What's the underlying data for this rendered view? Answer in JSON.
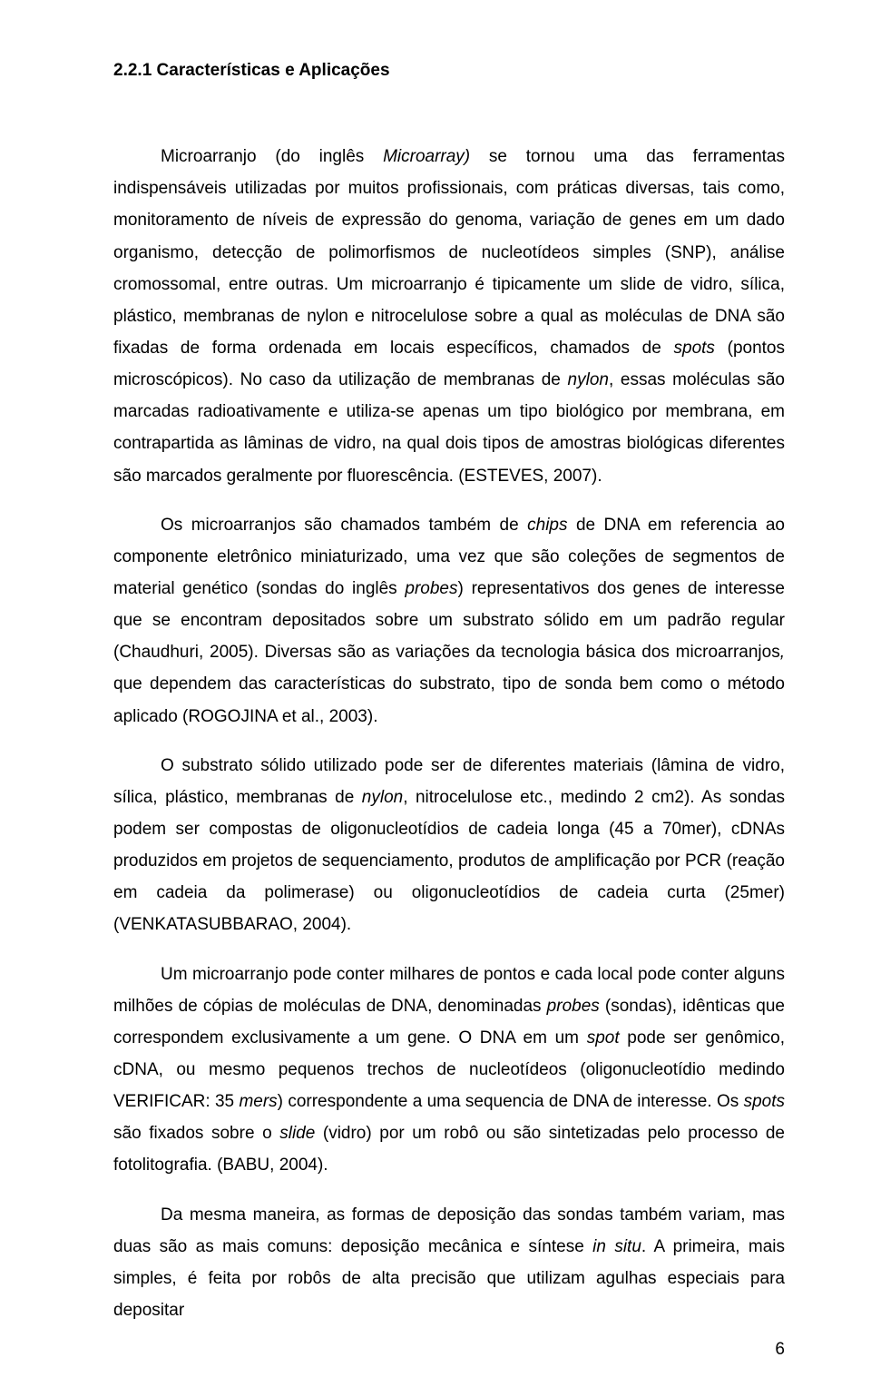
{
  "colors": {
    "background": "#ffffff",
    "text": "#000000"
  },
  "typography": {
    "font_family": "Arial, Helvetica, sans-serif",
    "font_size_pt": 12,
    "line_height": 1.85
  },
  "heading": "2.2.1   Características e Aplicações",
  "page_number": "6",
  "p1": {
    "t0": "Microarranjo (do inglês ",
    "t1": "Microarray)",
    "t2": " se tornou uma das ferramentas indispensáveis utilizadas por muitos profissionais, com práticas diversas, tais como, monitoramento de níveis de expressão do genoma, variação de genes em um dado organismo, detecção de polimorfismos de nucleotídeos simples (SNP), análise cromossomal, entre outras. Um microarranjo é tipicamente um slide de vidro, sílica, plástico, membranas de nylon e nitrocelulose sobre a qual as moléculas de DNA são fixadas de forma ordenada em locais específicos, chamados de ",
    "t3": "spots",
    "t4": " (pontos microscópicos). No caso da utilização de membranas de ",
    "t5": "nylon",
    "t6": ", essas moléculas são marcadas radioativamente e utiliza-se apenas um tipo biológico por membrana, em contrapartida as lâminas de vidro, na qual dois tipos de amostras biológicas diferentes são marcados geralmente por fluorescência. (ESTEVES, 2007)."
  },
  "p2": {
    "t0": "Os microarranjos são chamados também de ",
    "t1": "chips",
    "t2": " de DNA em referencia ao componente eletrônico miniaturizado, uma vez que são coleções de segmentos de material genético (sondas do inglês ",
    "t3": "probes",
    "t4": ") representativos dos genes de interesse que se encontram depositados sobre um substrato sólido em um padrão regular (Chaudhuri, 2005). Diversas são as variações da tecnologia básica dos microarranjos",
    "t5": ",",
    "t6": " que dependem das características do substrato, tipo de sonda bem como o método aplicado (ROGOJINA et al., 2003)."
  },
  "p3": {
    "t0": "O substrato sólido utilizado pode ser de diferentes materiais (lâmina de vidro, sílica, plástico, membranas de ",
    "t1": "nylon",
    "t2": ", nitrocelulose etc., medindo 2 cm2). As sondas podem ser compostas de oligonucleotídios de cadeia longa (45 a 70mer), cDNAs produzidos  em projetos de sequenciamento, produtos de amplificação por PCR (reação em cadeia da polimerase) ou oligonucleotídios de cadeia curta (25mer) (VENKATASUBBARAO, 2004)."
  },
  "p4": {
    "t0": "Um microarranjo pode conter milhares de pontos e cada local pode conter alguns milhões de cópias de moléculas de DNA, denominadas ",
    "t1": "probes",
    "t2": " (sondas), idênticas que correspondem exclusivamente a um gene. O DNA em um ",
    "t3": "spot",
    "t4": " pode ser genômico, cDNA, ou mesmo pequenos trechos de nucleotídeos (oligonucleotídio medindo VERIFICAR: 35 ",
    "t5": "mers",
    "t6": ") correspondente a uma sequencia de DNA de interesse. Os ",
    "t7": "spots",
    "t8": " são fixados sobre o ",
    "t9": "slide",
    "t10": " (vidro) por um robô ou são sintetizadas pelo processo de fotolitografia. (BABU, 2004)."
  },
  "p5": {
    "t0": "Da mesma maneira, as formas de deposição das sondas também variam, mas duas são as mais comuns: deposição mecânica e síntese ",
    "t1": "in situ",
    "t2": ". A primeira, mais simples, é feita por robôs de alta precisão que utilizam agulhas especiais para depositar"
  }
}
